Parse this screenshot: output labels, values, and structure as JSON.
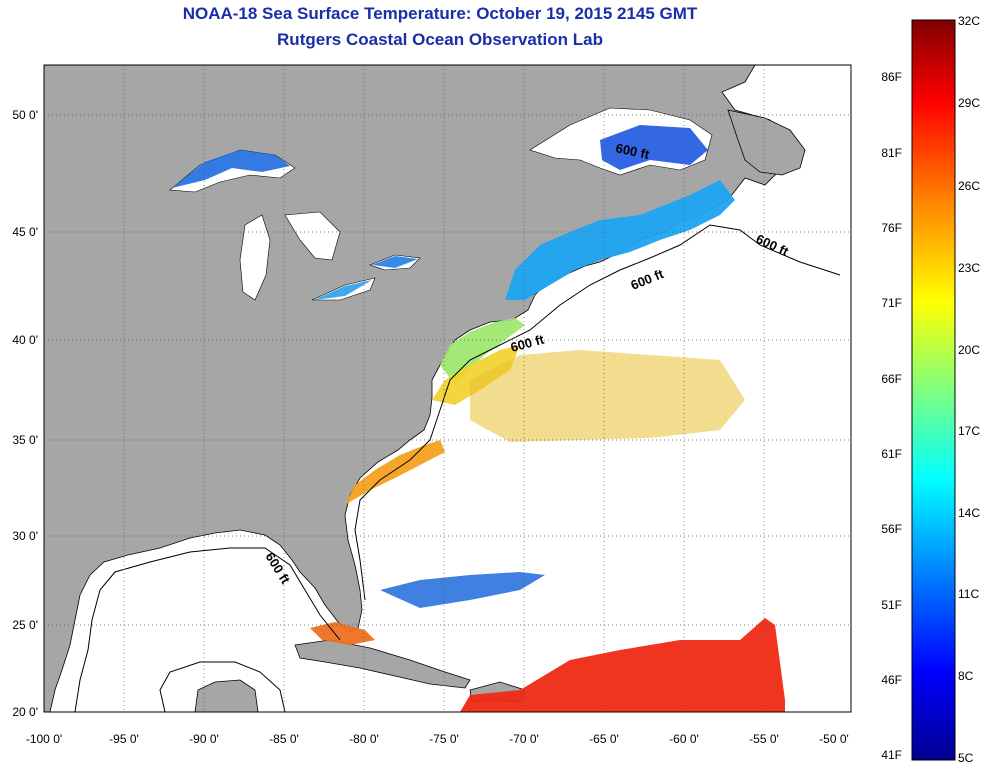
{
  "title": {
    "line1": "NOAA-18 Sea Surface Temperature:  October 19, 2015 2145 GMT",
    "line2": "Rutgers Coastal Ocean Observation Lab"
  },
  "map": {
    "lat_ticks": [
      "50 0'",
      "45 0'",
      "40 0'",
      "35 0'",
      "30 0'",
      "25 0'",
      "20 0'"
    ],
    "lon_ticks": [
      "-100 0'",
      "-95 0'",
      "-90 0'",
      "-85 0'",
      "-80 0'",
      "-75 0'",
      "-70 0'",
      "-65 0'",
      "-60 0'",
      "-55 0'",
      "-50 0'"
    ],
    "contour_label": "600 ft",
    "land_color": "#a6a6a6",
    "ocean_color": "#ffffff"
  },
  "colorbar": {
    "celsius_labels": [
      "32C",
      "29C",
      "26C",
      "23C",
      "20C",
      "17C",
      "14C",
      "11C",
      "8C",
      "5C"
    ],
    "fahrenheit_labels": [
      "86F",
      "81F",
      "76F",
      "71F",
      "66F",
      "61F",
      "56F",
      "51F",
      "46F",
      "41F"
    ],
    "gradient_colors": [
      "#7f0000",
      "#ff0000",
      "#ff7f00",
      "#ffff00",
      "#7fff7f",
      "#00ffff",
      "#007fff",
      "#0000ff",
      "#00008f"
    ]
  }
}
